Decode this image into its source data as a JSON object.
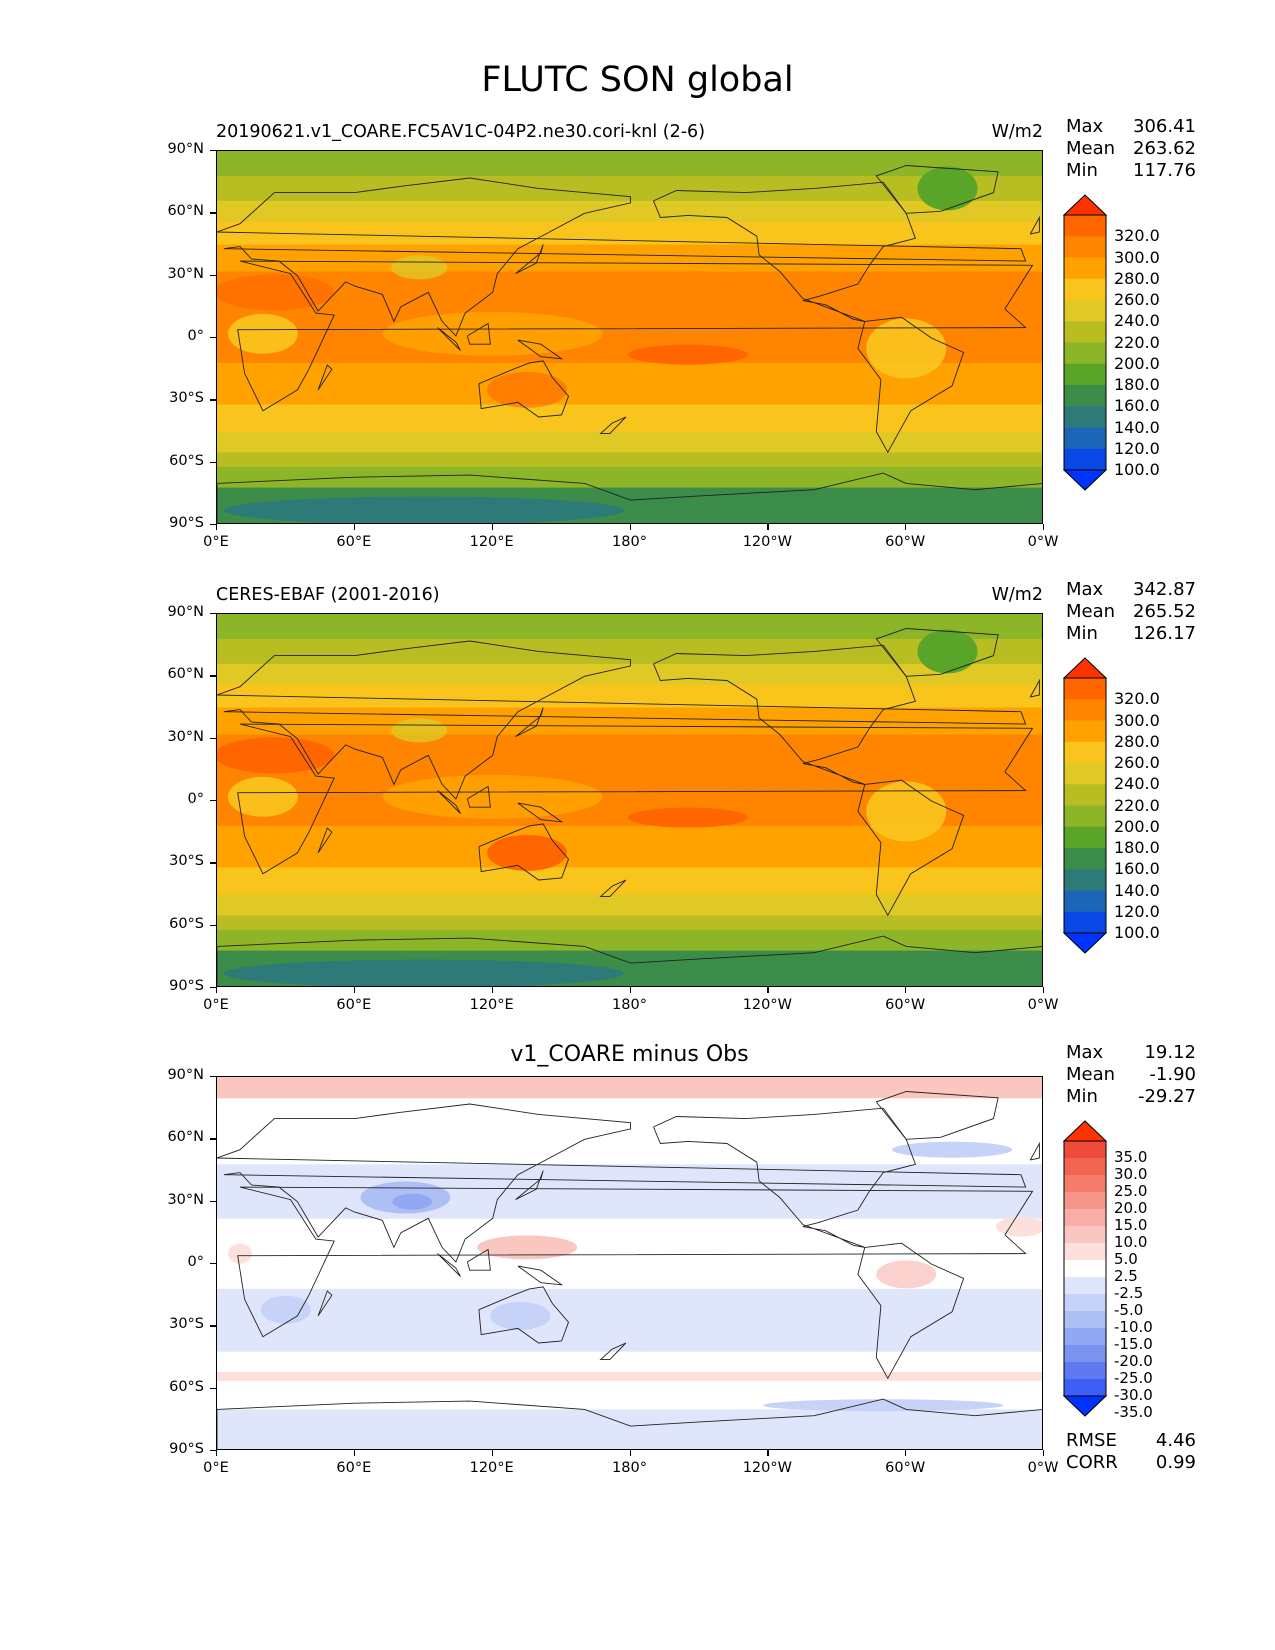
{
  "figure": {
    "title": "FLUTC SON global"
  },
  "axes": {
    "lat_ticks": [
      "90°N",
      "60°N",
      "30°N",
      "0°",
      "30°S",
      "60°S",
      "90°S"
    ],
    "lon_ticks": [
      "0°E",
      "60°E",
      "120°E",
      "180°",
      "120°W",
      "60°W",
      "0°W"
    ]
  },
  "panels": [
    {
      "id": "model",
      "left_title": "20190621.v1_COARE.FC5AV1C-04P2.ne30.cori-knl (2-6)",
      "center_title": "",
      "units": "W/m2",
      "stats": {
        "max_label": "Max",
        "max": "306.41",
        "mean_label": "Mean",
        "mean": "263.62",
        "min_label": "Min",
        "min": "117.76"
      },
      "colorbar": {
        "labels": [
          "320.0",
          "300.0",
          "280.0",
          "260.0",
          "240.0",
          "220.0",
          "200.0",
          "180.0",
          "160.0",
          "140.0",
          "120.0",
          "100.0"
        ],
        "colors": [
          "#ff3300",
          "#ff6600",
          "#ff8400",
          "#ffa200",
          "#f9c51d",
          "#e0c825",
          "#b8be22",
          "#8cb628",
          "#5aa42a",
          "#3c8c4a",
          "#2e7a78",
          "#1c66b8",
          "#0a48e6",
          "#0033ff"
        ]
      }
    },
    {
      "id": "obs",
      "left_title": "CERES-EBAF (2001-2016)",
      "center_title": "",
      "units": "W/m2",
      "stats": {
        "max_label": "Max",
        "max": "342.87",
        "mean_label": "Mean",
        "mean": "265.52",
        "min_label": "Min",
        "min": "126.17"
      },
      "colorbar": {
        "labels": [
          "320.0",
          "300.0",
          "280.0",
          "260.0",
          "240.0",
          "220.0",
          "200.0",
          "180.0",
          "160.0",
          "140.0",
          "120.0",
          "100.0"
        ],
        "colors": [
          "#ff3300",
          "#ff6600",
          "#ff8400",
          "#ffa200",
          "#f9c51d",
          "#e0c825",
          "#b8be22",
          "#8cb628",
          "#5aa42a",
          "#3c8c4a",
          "#2e7a78",
          "#1c66b8",
          "#0a48e6",
          "#0033ff"
        ]
      }
    },
    {
      "id": "diff",
      "left_title": "",
      "center_title": "v1_COARE minus Obs",
      "units": "",
      "stats": {
        "max_label": "Max",
        "max": "19.12",
        "mean_label": "Mean",
        "mean": "-1.90",
        "min_label": "Min",
        "min": "-29.27"
      },
      "colorbar": {
        "labels": [
          "35.0",
          "30.0",
          "25.0",
          "20.0",
          "15.0",
          "10.0",
          "5.0",
          "2.5",
          "-2.5",
          "-5.0",
          "-10.0",
          "-15.0",
          "-20.0",
          "-25.0",
          "-30.0",
          "-35.0"
        ],
        "colors": [
          "#ff3300",
          "#f04a3a",
          "#f26550",
          "#f47c6a",
          "#f6958a",
          "#f8ada6",
          "#fac6c0",
          "#fde0dc",
          "#ffffff",
          "#dfe6fb",
          "#c6d2f8",
          "#aebff6",
          "#93a8f3",
          "#7a92f0",
          "#5f7af0",
          "#3d5ff5",
          "#0033ff"
        ]
      },
      "metrics": {
        "rmse_label": "RMSE",
        "rmse": "4.46",
        "corr_label": "CORR",
        "corr": "0.99"
      }
    }
  ]
}
